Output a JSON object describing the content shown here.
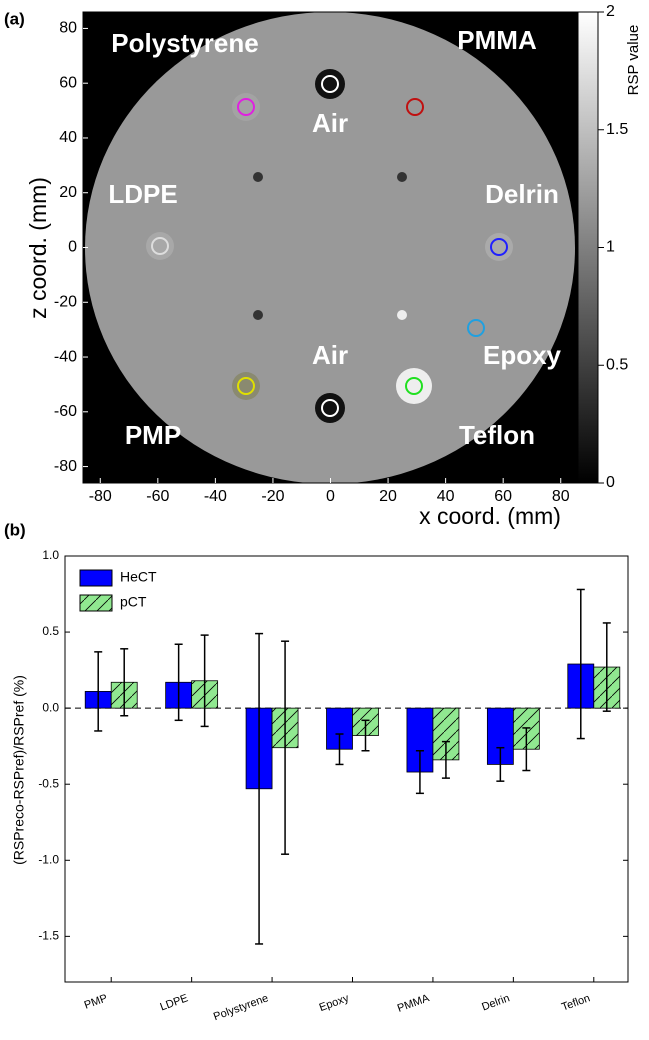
{
  "chart_data": [
    {
      "type": "image",
      "panel_label": "(a)",
      "xlabel": "x coord. (mm)",
      "ylabel": "z coord. (mm)",
      "xlim": [
        -86,
        86
      ],
      "ylim": [
        -86,
        86
      ],
      "xticks": [
        -80,
        -60,
        -40,
        -20,
        0,
        20,
        40,
        60,
        80
      ],
      "yticks": [
        -80,
        -60,
        -40,
        -20,
        0,
        20,
        40,
        60,
        80
      ],
      "colorbar": {
        "label": "RSP value",
        "lim": [
          0,
          2
        ],
        "ticks": [
          0,
          0.5,
          1,
          1.5,
          2
        ]
      },
      "annotations": [
        "Polystyrene",
        "PMMA",
        "Air",
        "LDPE",
        "Delrin",
        "Air",
        "Epoxy",
        "PMP",
        "Teflon"
      ]
    },
    {
      "type": "bar",
      "panel_label": "(b)",
      "ylabel": "(RSPreco-RSPref)/RSPref (%)",
      "categories": [
        "PMP",
        "LDPE",
        "Polystyrene",
        "Epoxy",
        "PMMA",
        "Delrin",
        "Teflon"
      ],
      "series": [
        {
          "name": "HeCT",
          "color": "#0000ff",
          "values": [
            0.11,
            0.17,
            -0.53,
            -0.27,
            -0.42,
            -0.37,
            0.29
          ],
          "errors": [
            0.26,
            0.25,
            1.02,
            0.1,
            0.14,
            0.11,
            0.49
          ]
        },
        {
          "name": "pCT",
          "color": "#90e890",
          "hatch": "/",
          "values": [
            0.17,
            0.18,
            -0.26,
            -0.18,
            -0.34,
            -0.27,
            0.27
          ],
          "errors": [
            0.22,
            0.3,
            0.7,
            0.1,
            0.12,
            0.14,
            0.29
          ]
        }
      ],
      "ylim": [
        -1.8,
        1.0
      ],
      "yticks": [
        {
          "value": -1.5,
          "label": "-1.5"
        },
        {
          "value": -1.0,
          "label": "-1.0"
        },
        {
          "value": -0.5,
          "label": "-0.5"
        },
        {
          "value": 0.0,
          "label": "0.0"
        },
        {
          "value": 0.5,
          "label": "0.5"
        },
        {
          "value": 1.0,
          "label": "1.0"
        }
      ],
      "zero_line": true,
      "legend": "upper left"
    }
  ]
}
